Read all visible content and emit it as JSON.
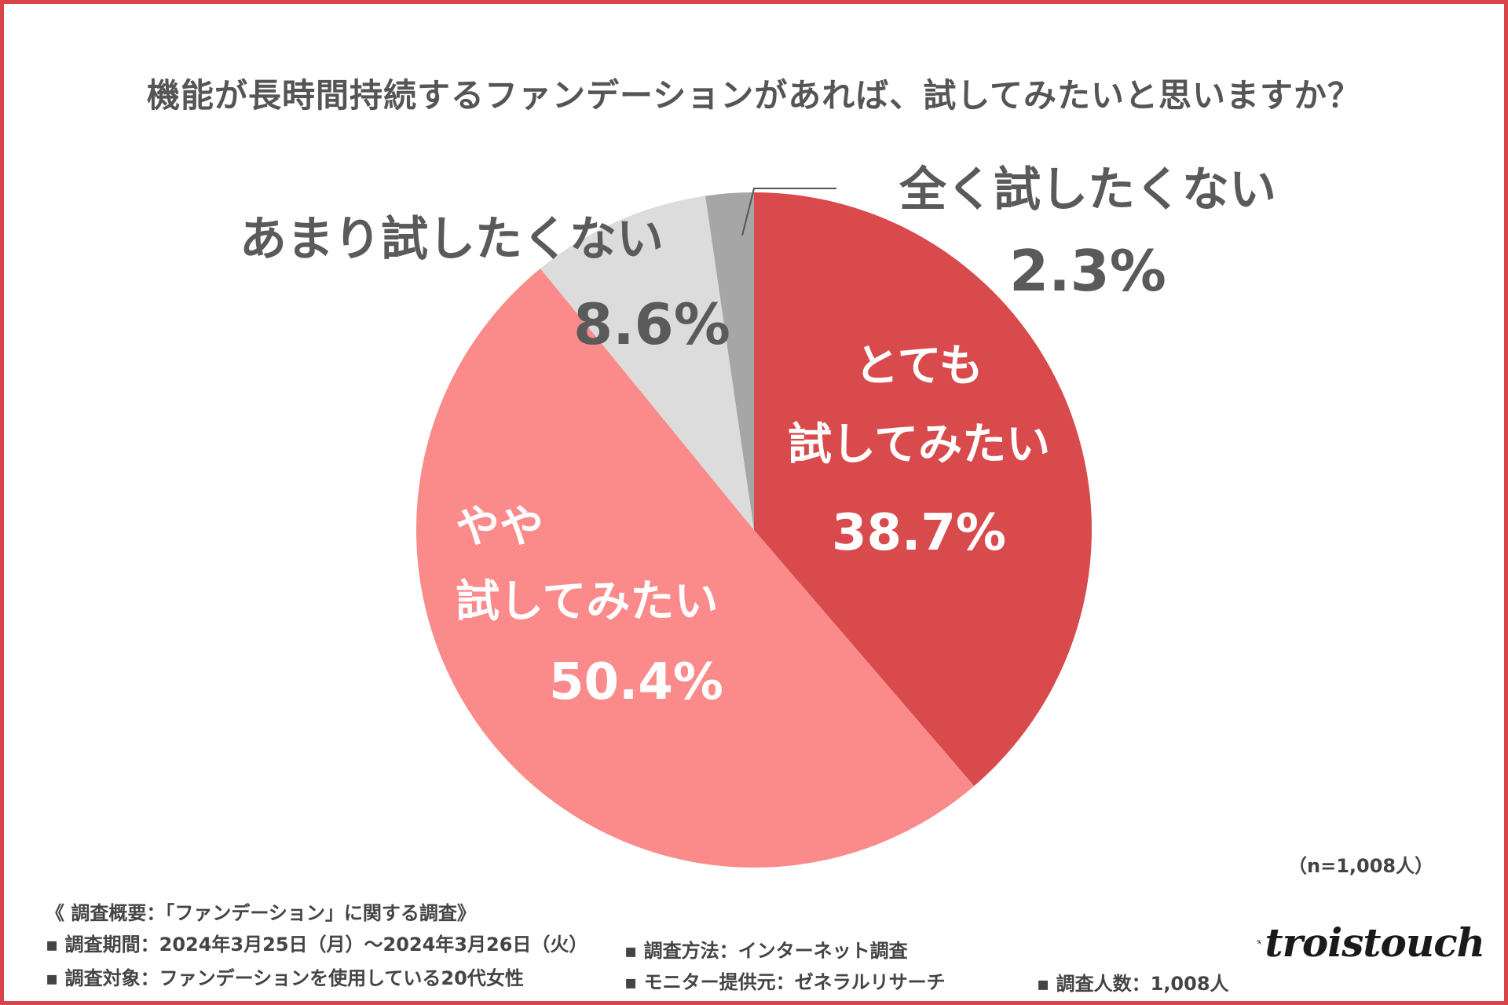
{
  "title": "機能が長時間持続するファンデーションがあれば、試してみたいと思いますか？",
  "chart_data": {
    "type": "pie",
    "title": "機能が長時間持続するファンデーションがあれば、試してみたいと思いますか？",
    "start": "12 o'clock, clockwise",
    "slices": [
      {
        "name": "とても試してみたい",
        "lines": [
          "とても",
          "試してみたい"
        ],
        "value": 38.7,
        "label": "38.7%",
        "color": "#d94a4c",
        "text_color": "#ffffff"
      },
      {
        "name": "やや試してみたい",
        "lines": [
          "やや",
          "試してみたい"
        ],
        "value": 50.4,
        "label": "50.4%",
        "color": "#fb8b8b",
        "text_color": "#ffffff"
      },
      {
        "name": "あまり試したくない",
        "lines": [
          "あまり試したくない"
        ],
        "value": 8.6,
        "label": "8.6%",
        "color": "#dcdcdc",
        "text_color": "#5a5a5a"
      },
      {
        "name": "全く試したくない",
        "lines": [
          "全く試したくない"
        ],
        "value": 2.3,
        "label": "2.3%",
        "color": "#a6a6a6",
        "text_color": "#5a5a5a"
      }
    ]
  },
  "sample_size": "（n=1,008人）",
  "footer": {
    "heading": "《 調査概要：「ファンデーション」に関する調査》",
    "period": "▪ 調査期間：2024年3月25日（月）〜2024年3月26日（火）",
    "target": "▪ 調査対象：ファンデーションを使用している20代女性",
    "method": "▪ 調査方法：インターネット調査",
    "provider": "▪ モニター提供元：ゼネラルリサーチ",
    "count": "▪ 調査人数：1,008人"
  },
  "brand": {
    "name": "troistouch"
  },
  "colors": {
    "border": "#d9434a",
    "text": "#555555"
  }
}
